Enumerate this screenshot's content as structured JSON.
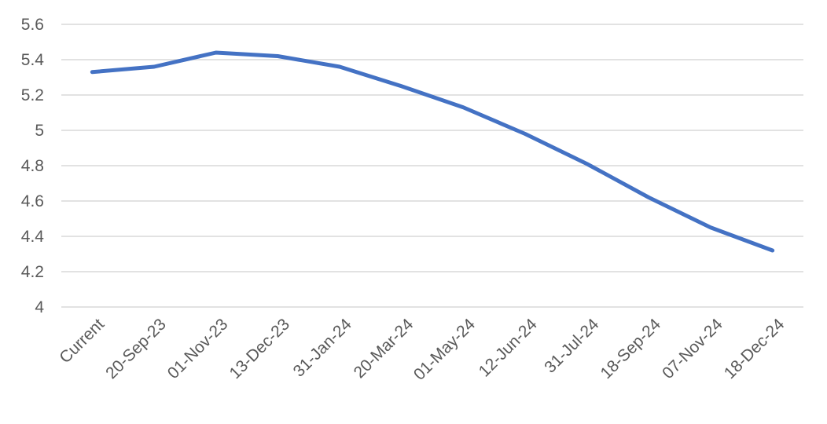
{
  "chart_data": {
    "type": "line",
    "categories": [
      "Current",
      "20-Sep-23",
      "01-Nov-23",
      "13-Dec-23",
      "31-Jan-24",
      "20-Mar-24",
      "01-May-24",
      "12-Jun-24",
      "31-Jul-24",
      "18-Sep-24",
      "07-Nov-24",
      "18-Dec-24"
    ],
    "values": [
      5.33,
      5.36,
      5.44,
      5.42,
      5.36,
      5.25,
      5.13,
      4.98,
      4.81,
      4.62,
      4.45,
      4.32
    ],
    "color": "#4472c4",
    "ylim": [
      4,
      5.6
    ],
    "yticks": [
      4,
      4.2,
      4.4,
      4.6,
      4.8,
      5,
      5.2,
      5.4,
      5.6
    ],
    "grid": true
  }
}
